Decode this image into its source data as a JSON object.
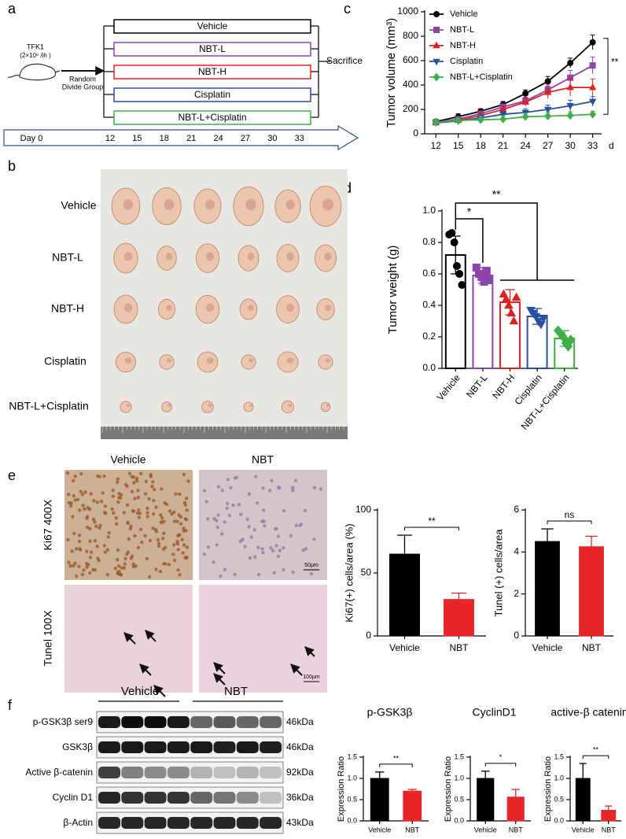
{
  "panel_labels": [
    "a",
    "b",
    "c",
    "d",
    "e",
    "f"
  ],
  "diagram": {
    "cell_line": "TFK1",
    "dose": "(2×10⁶ /ih )",
    "arrow_label": [
      "Random",
      "Divide Group"
    ],
    "groups": [
      "Vehicle",
      "NBT-L",
      "NBT-H",
      "Cisplatin",
      "NBT-L+Cisplatin"
    ],
    "group_colors": [
      "#000000",
      "#8e44ad",
      "#e02020",
      "#2a4fa0",
      "#3fae49"
    ],
    "endpoint": "Sacrifice",
    "timeline_start": "Day 0",
    "timeline_days": [
      "12",
      "15",
      "18",
      "21",
      "24",
      "27",
      "30",
      "33"
    ]
  },
  "photo": {
    "rows": [
      "Vehicle",
      "NBT-L",
      "NBT-H",
      "Cisplatin",
      "NBT-L+Cisplatin"
    ]
  },
  "histology": {
    "columns": [
      "Vehicle",
      "NBT"
    ],
    "rows": [
      "Ki67 400X",
      "Tunel 100X"
    ],
    "scale_bars": [
      "50μm",
      "100μm"
    ]
  },
  "blot": {
    "groups": [
      "Vehicle",
      "NBT"
    ],
    "rows": [
      {
        "name": "p-GSK3β ser9",
        "size": "46kDa"
      },
      {
        "name": "GSK3β",
        "size": "46kDa"
      },
      {
        "name": "Active β-catenin",
        "size": "92kDa"
      },
      {
        "name": "Cyclin D1",
        "size": "36kDa"
      },
      {
        "name": "β-Actin",
        "size": "43kDa"
      }
    ]
  },
  "chart_data": [
    {
      "type": "line",
      "y_label": "Tumor volume (mm³)",
      "x_label": "d",
      "x": [
        12,
        15,
        18,
        21,
        24,
        27,
        30,
        33
      ],
      "xlim": [
        10.5,
        34.2
      ],
      "xticks": [
        12,
        15,
        18,
        21,
        24,
        27,
        30,
        33
      ],
      "ylim": [
        0,
        1000
      ],
      "yticks": [
        0,
        200,
        400,
        600,
        800,
        1000
      ],
      "legend": "upper left",
      "annotation": "**",
      "series": [
        {
          "name": "Vehicle",
          "color": "#000000",
          "marker": "circle",
          "values": [
            100,
            140,
            185,
            240,
            330,
            430,
            580,
            750
          ],
          "errors": [
            15,
            25,
            20,
            25,
            30,
            40,
            40,
            60
          ]
        },
        {
          "name": "NBT-L",
          "color": "#8e44ad",
          "marker": "square",
          "values": [
            95,
            120,
            165,
            220,
            270,
            360,
            460,
            560
          ],
          "errors": [
            15,
            20,
            20,
            25,
            30,
            45,
            60,
            70
          ]
        },
        {
          "name": "NBT-H",
          "color": "#e02020",
          "marker": "triangle-up",
          "values": [
            95,
            110,
            150,
            200,
            260,
            340,
            380,
            380
          ],
          "errors": [
            15,
            20,
            25,
            30,
            35,
            50,
            70,
            70
          ]
        },
        {
          "name": "Cisplatin",
          "color": "#2a4fa0",
          "marker": "triangle-down",
          "values": [
            90,
            105,
            130,
            160,
            175,
            200,
            230,
            265
          ],
          "errors": [
            15,
            20,
            25,
            25,
            30,
            35,
            45,
            40
          ]
        },
        {
          "name": "NBT-L+Cisplatin",
          "color": "#3fae49",
          "marker": "diamond",
          "values": [
            95,
            110,
            115,
            120,
            140,
            145,
            150,
            160
          ],
          "errors": [
            15,
            20,
            30,
            30,
            30,
            30,
            30,
            25
          ]
        }
      ]
    },
    {
      "type": "bar",
      "bar_style": "outline",
      "y_label": "Tumor weight (g)",
      "categories": [
        "Vehicle",
        "NBT-L",
        "NBT-H",
        "Cisplatin",
        "NBT-L+Cisplatin"
      ],
      "values": [
        0.72,
        0.59,
        0.42,
        0.33,
        0.19
      ],
      "errors": [
        0.12,
        0.05,
        0.08,
        0.05,
        0.05
      ],
      "points": [
        [
          0.85,
          0.86,
          0.8,
          0.65,
          0.6,
          0.53
        ],
        [
          0.64,
          0.6,
          0.58,
          0.55,
          0.62,
          0.56
        ],
        [
          0.47,
          0.44,
          0.4,
          0.35,
          0.3,
          0.45
        ],
        [
          0.37,
          0.35,
          0.33,
          0.3,
          0.28,
          0.32
        ],
        [
          0.24,
          0.22,
          0.2,
          0.16,
          0.14,
          0.18
        ]
      ],
      "colors": [
        "#000000",
        "#8e44ad",
        "#e02020",
        "#2a4fa0",
        "#3fae49"
      ],
      "markers": [
        "circle",
        "square",
        "triangle-up",
        "triangle-down",
        "diamond"
      ],
      "ylim": [
        0,
        1.0
      ],
      "yticks": [
        {
          "value": 0,
          "label": "0.0"
        },
        0.2,
        0.4,
        0.6,
        0.8,
        {
          "value": 1,
          "label": "1.0"
        }
      ],
      "annotations": [
        "*",
        "**"
      ]
    },
    {
      "type": "bar",
      "bar_style": "filled",
      "y_label": "Ki67(+) cells/area (%)",
      "categories": [
        "Vehicle",
        "NBT"
      ],
      "values": [
        65,
        29
      ],
      "errors": [
        15,
        5
      ],
      "colors": [
        "#000000",
        "#e8262a"
      ],
      "ylim": [
        0,
        100
      ],
      "yticks": [
        0,
        50,
        100
      ],
      "annotations": [
        "**"
      ]
    },
    {
      "type": "bar",
      "bar_style": "filled",
      "y_label": "Tunel (+) cells/area",
      "categories": [
        "Vehicle",
        "NBT"
      ],
      "values": [
        4.5,
        4.25
      ],
      "errors": [
        0.6,
        0.5
      ],
      "colors": [
        "#000000",
        "#e8262a"
      ],
      "ylim": [
        0,
        6
      ],
      "yticks": [
        0,
        2,
        4,
        6
      ],
      "annotations": [
        "ns"
      ]
    },
    {
      "type": "bar",
      "bar_style": "filled",
      "title": "p-GSK3β",
      "y_label": "Expression Ratio",
      "categories": [
        "Vehicle",
        "NBT"
      ],
      "values": [
        1.0,
        0.7
      ],
      "errors": [
        0.15,
        0.04
      ],
      "colors": [
        "#000000",
        "#e8262a"
      ],
      "ylim": [
        0,
        1.5
      ],
      "yticks": [
        {
          "value": 0,
          "label": "0.0"
        },
        0.5,
        {
          "value": 1,
          "label": "1.0"
        },
        1.5
      ],
      "annotations": [
        "**"
      ]
    },
    {
      "type": "bar",
      "bar_style": "filled",
      "title": "CyclinD1",
      "y_label": "Expression Ratio",
      "categories": [
        "Vehicle",
        "NBT"
      ],
      "values": [
        1.0,
        0.56
      ],
      "errors": [
        0.17,
        0.18
      ],
      "colors": [
        "#000000",
        "#e8262a"
      ],
      "ylim": [
        0,
        1.5
      ],
      "yticks": [
        {
          "value": 0,
          "label": "0.0"
        },
        0.5,
        {
          "value": 1,
          "label": "1.0"
        },
        1.5
      ],
      "annotations": [
        "*"
      ]
    },
    {
      "type": "bar",
      "bar_style": "filled",
      "title": "active-β catenin",
      "y_label": "Expression Ratio",
      "categories": [
        "Vehicle",
        "NBT"
      ],
      "values": [
        1.0,
        0.25
      ],
      "errors": [
        0.35,
        0.1
      ],
      "colors": [
        "#000000",
        "#e8262a"
      ],
      "ylim": [
        0,
        1.5
      ],
      "yticks": [
        {
          "value": 0,
          "label": "0.0"
        },
        0.5,
        {
          "value": 1,
          "label": "1.0"
        },
        1.5
      ],
      "annotations": [
        "**"
      ]
    }
  ]
}
